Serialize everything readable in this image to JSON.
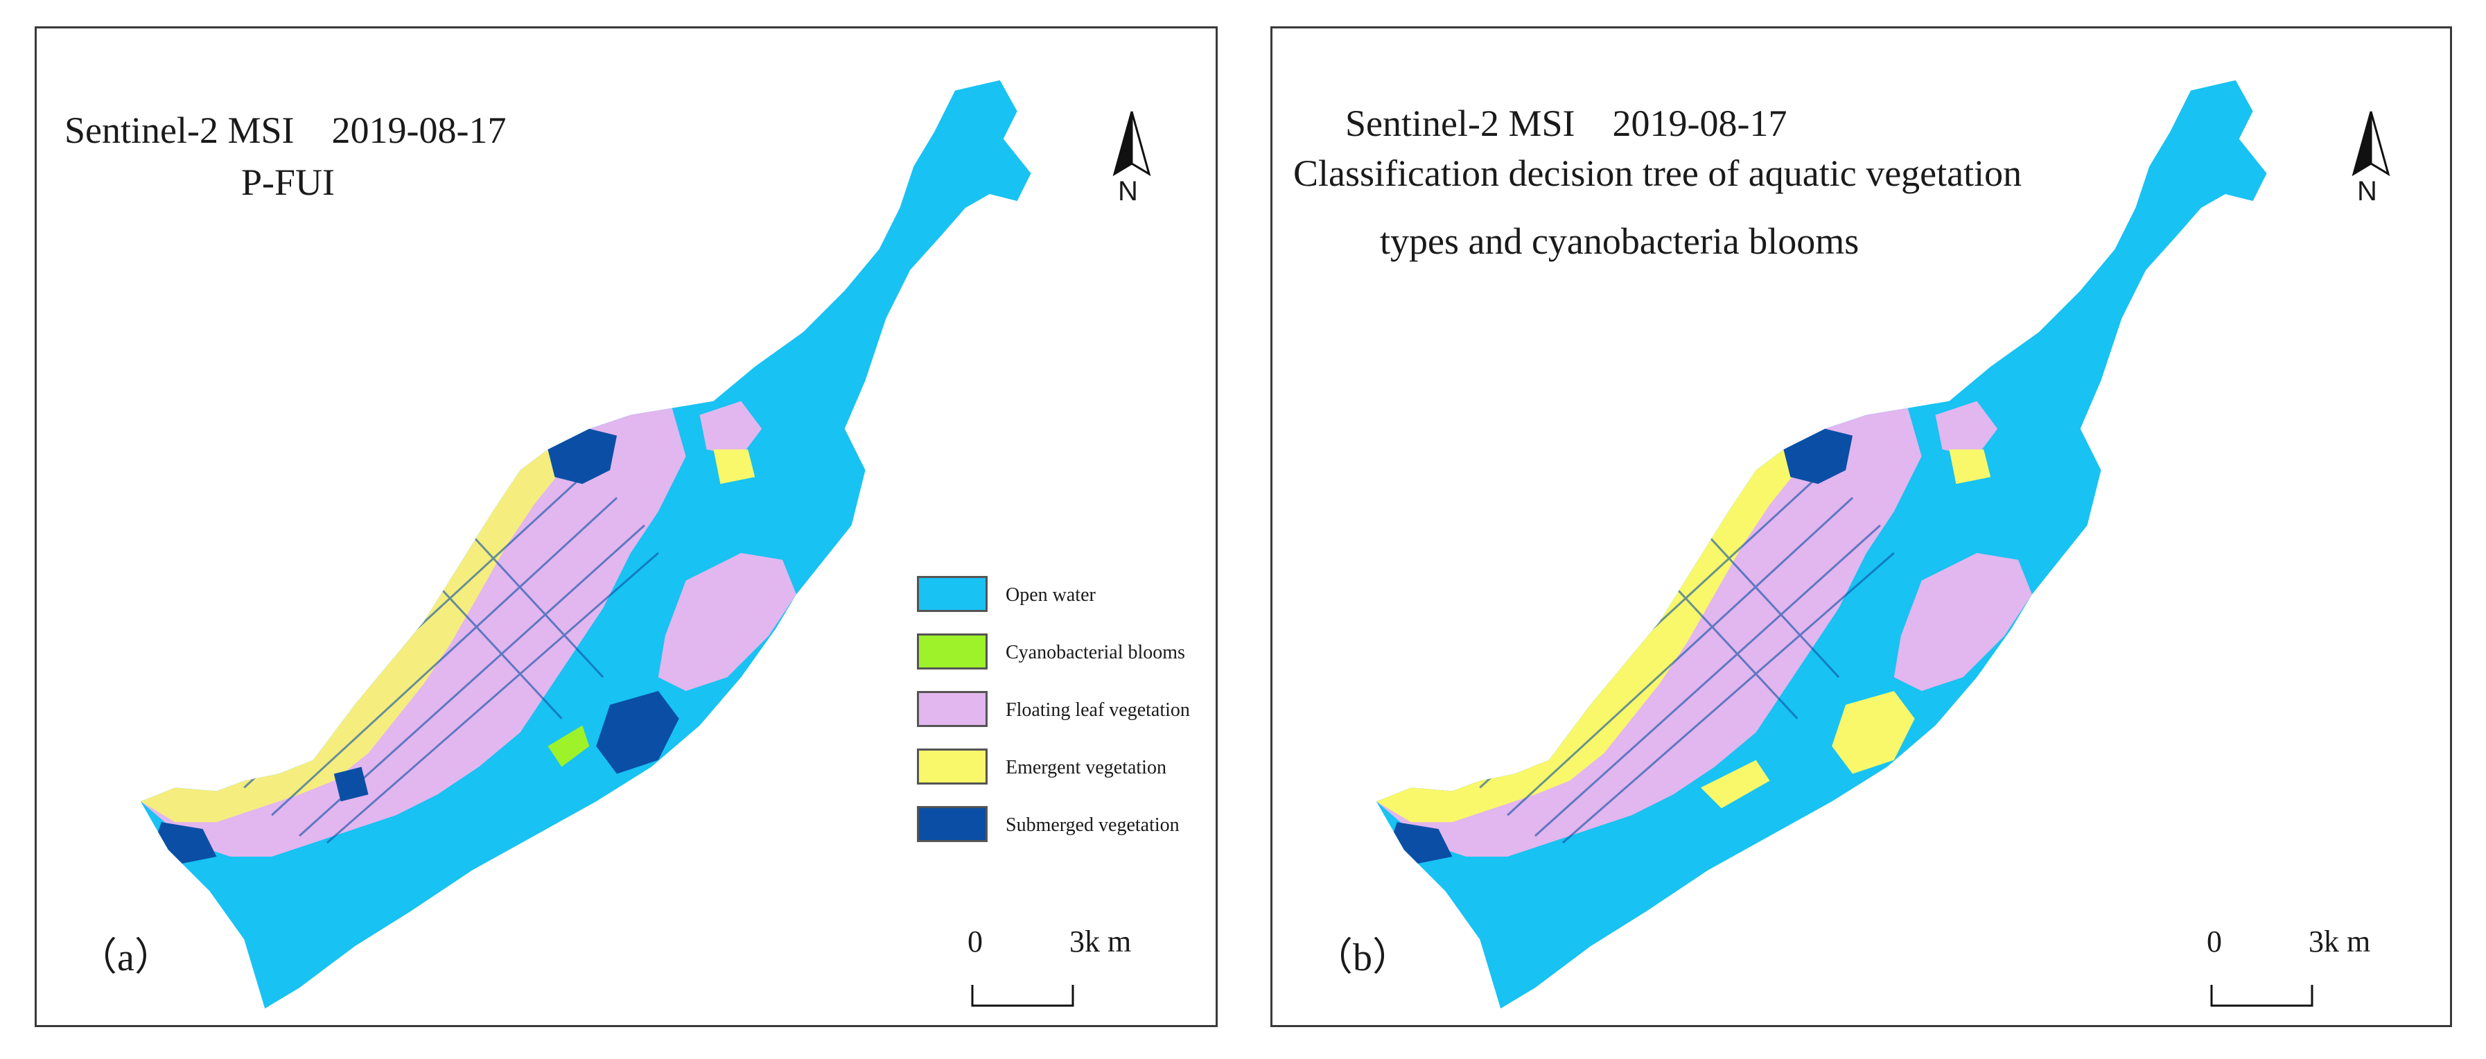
{
  "colors": {
    "open_water": "#18c2f2",
    "cyanobacterial_blooms": "#9df22a",
    "floating_leaf_vegetation": "#e2b6ee",
    "emergent_vegetation": "#f8f86a",
    "submerged_vegetation": "#0a4fa5"
  },
  "panels": [
    {
      "label": "（a）",
      "title_lines": [
        "Sentinel-2 MSI　2019-08-17",
        "P-FUI"
      ],
      "north_label": "N",
      "scale": {
        "zero": "0",
        "end": "3k m"
      }
    },
    {
      "label": "（b）",
      "title_lines": [
        "Sentinel-2 MSI　2019-08-17",
        "Classification decision tree of aquatic vegetation",
        "types and cyanobacteria blooms"
      ],
      "north_label": "N",
      "scale": {
        "zero": "0",
        "end": "3k m"
      }
    }
  ],
  "legend": {
    "items": [
      {
        "label": "Open water",
        "color_key": "open_water"
      },
      {
        "label": "Cyanobacterial blooms",
        "color_key": "cyanobacterial_blooms"
      },
      {
        "label": "Floating leaf vegetation",
        "color_key": "floating_leaf_vegetation"
      },
      {
        "label": "Emergent vegetation",
        "color_key": "emergent_vegetation"
      },
      {
        "label": "Submerged vegetation",
        "color_key": "submerged_vegetation"
      }
    ]
  }
}
